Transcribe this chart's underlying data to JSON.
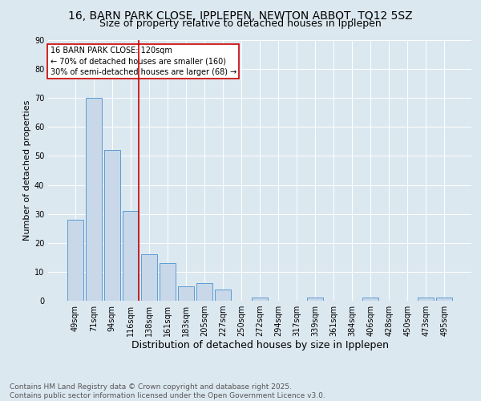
{
  "title1": "16, BARN PARK CLOSE, IPPLEPEN, NEWTON ABBOT, TQ12 5SZ",
  "title2": "Size of property relative to detached houses in Ipplepen",
  "xlabel": "Distribution of detached houses by size in Ipplepen",
  "ylabel": "Number of detached properties",
  "categories": [
    "49sqm",
    "71sqm",
    "94sqm",
    "116sqm",
    "138sqm",
    "161sqm",
    "183sqm",
    "205sqm",
    "227sqm",
    "250sqm",
    "272sqm",
    "294sqm",
    "317sqm",
    "339sqm",
    "361sqm",
    "384sqm",
    "406sqm",
    "428sqm",
    "450sqm",
    "473sqm",
    "495sqm"
  ],
  "values": [
    28,
    70,
    52,
    31,
    16,
    13,
    5,
    6,
    4,
    0,
    1,
    0,
    0,
    1,
    0,
    0,
    1,
    0,
    0,
    1,
    1
  ],
  "bar_color": "#c8d8e8",
  "bar_edge_color": "#5b9bd5",
  "vline_index": 3,
  "annotation_text": "16 BARN PARK CLOSE: 120sqm\n← 70% of detached houses are smaller (160)\n30% of semi-detached houses are larger (68) →",
  "annotation_box_color": "#ffffff",
  "annotation_box_edge": "#cc0000",
  "vline_color": "#cc0000",
  "background_color": "#dce8f0",
  "plot_bg_color": "#dce8f0",
  "footer": "Contains HM Land Registry data © Crown copyright and database right 2025.\nContains public sector information licensed under the Open Government Licence v3.0.",
  "ylim": [
    0,
    90
  ],
  "yticks": [
    0,
    10,
    20,
    30,
    40,
    50,
    60,
    70,
    80,
    90
  ],
  "title1_fontsize": 10,
  "title2_fontsize": 9,
  "xlabel_fontsize": 9,
  "ylabel_fontsize": 8,
  "tick_fontsize": 7,
  "footer_fontsize": 6.5
}
